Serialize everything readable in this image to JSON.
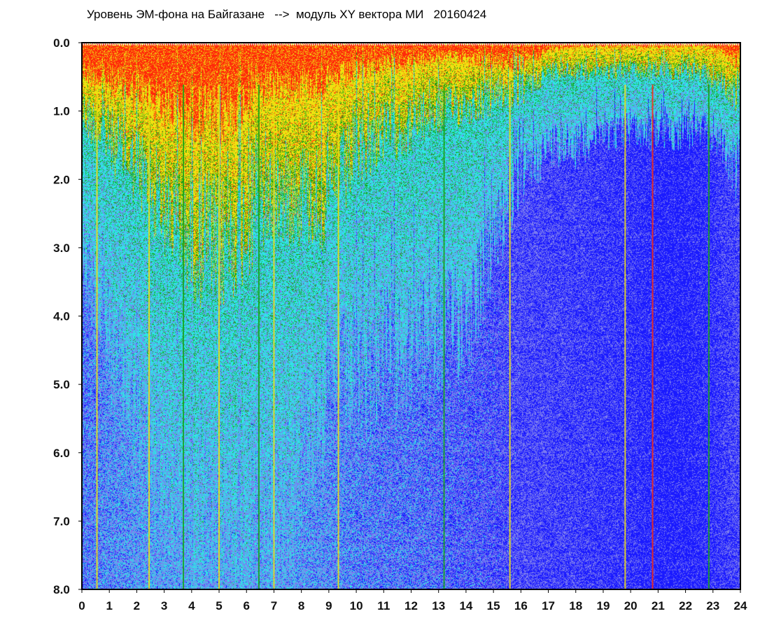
{
  "chart_data": {
    "type": "heatmap",
    "title": "Уровень ЭМ-фона на Байгазане   -->  модуль XY вектора МИ   20160424",
    "xlabel": "",
    "ylabel": "",
    "xlim": [
      0,
      24
    ],
    "ylim": [
      8.0,
      0.0
    ],
    "x_ticks": [
      "0",
      "1",
      "2",
      "3",
      "4",
      "5",
      "6",
      "7",
      "8",
      "9",
      "10",
      "11",
      "12",
      "13",
      "14",
      "15",
      "16",
      "17",
      "18",
      "19",
      "20",
      "21",
      "22",
      "23",
      "24"
    ],
    "y_ticks": [
      "0.0",
      "1.0",
      "2.0",
      "3.0",
      "4.0",
      "5.0",
      "6.0",
      "7.0",
      "8.0"
    ],
    "color_scale": [
      "#1a1aff",
      "#7b7bf0",
      "#2ee6e6",
      "#16a316",
      "#f0e010",
      "#ff2a0a"
    ],
    "background_color": "#7a86e8",
    "hourly_profile": {
      "hours": [
        0,
        1,
        2,
        3,
        4,
        5,
        6,
        7,
        8,
        9,
        10,
        11,
        12,
        13,
        14,
        15,
        16,
        17,
        18,
        19,
        20,
        21,
        22,
        23,
        24
      ],
      "red_zone_depth": [
        0.4,
        0.6,
        0.7,
        0.9,
        1.0,
        1.1,
        0.8,
        0.6,
        0.6,
        0.6,
        0.4,
        0.3,
        0.3,
        0.2,
        0.2,
        0.3,
        0.3,
        0.1,
        0.05,
        0.05,
        0.05,
        0.05,
        0.05,
        0.05,
        0.3
      ],
      "yellow_zone_depth": [
        1.0,
        1.4,
        1.8,
        2.4,
        2.8,
        3.0,
        2.6,
        2.2,
        2.2,
        2.3,
        1.6,
        1.3,
        1.2,
        1.0,
        0.9,
        0.8,
        0.7,
        0.4,
        0.4,
        0.4,
        0.4,
        0.4,
        0.4,
        0.5,
        0.8
      ],
      "cyan_zone_depth": [
        3.0,
        4.5,
        5.5,
        6.5,
        7.0,
        7.5,
        7.2,
        7.0,
        6.0,
        5.0,
        5.0,
        4.5,
        4.5,
        4.3,
        4.0,
        3.0,
        2.0,
        1.5,
        1.5,
        1.3,
        1.3,
        1.3,
        1.3,
        1.3,
        2.0
      ],
      "dark_blue_intensity": [
        0.3,
        0.2,
        0.15,
        0.1,
        0.1,
        0.1,
        0.1,
        0.1,
        0.15,
        0.2,
        0.25,
        0.3,
        0.3,
        0.35,
        0.4,
        0.45,
        0.5,
        0.55,
        0.6,
        0.65,
        0.7,
        0.8,
        0.8,
        0.7,
        0.5
      ]
    },
    "vertical_streaks": [
      {
        "hour": 0.55,
        "color": "#f0e010"
      },
      {
        "hour": 2.45,
        "color": "#f0e010"
      },
      {
        "hour": 3.7,
        "color": "#16a316"
      },
      {
        "hour": 5.0,
        "color": "#f0e010"
      },
      {
        "hour": 6.45,
        "color": "#16a316"
      },
      {
        "hour": 7.0,
        "color": "#f0e010"
      },
      {
        "hour": 9.35,
        "color": "#f0e010"
      },
      {
        "hour": 13.2,
        "color": "#16a316"
      },
      {
        "hour": 15.6,
        "color": "#f0e010"
      },
      {
        "hour": 19.8,
        "color": "#f0e010"
      },
      {
        "hour": 20.8,
        "color": "#ff2a0a"
      },
      {
        "hour": 22.85,
        "color": "#16a316"
      }
    ]
  }
}
